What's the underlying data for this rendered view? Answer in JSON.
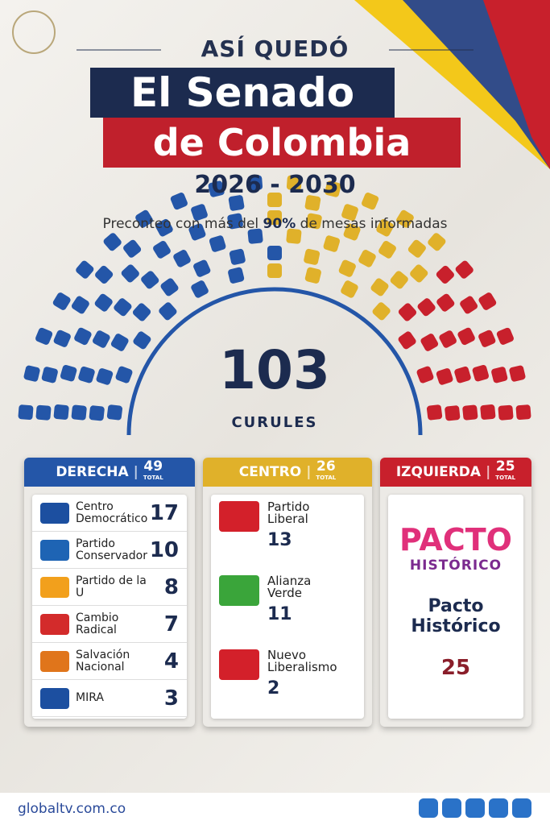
{
  "header": {
    "kicker": "ASÍ QUEDÓ",
    "title_line1": "El Senado",
    "title_line2": "de Colombia",
    "years": "2026 - 2030",
    "subtitle_before": "Preconteo con más del",
    "subtitle_highlight": "90%",
    "subtitle_after": "de mesas informadas"
  },
  "total": {
    "value": 103,
    "label": "CURULES"
  },
  "blocs": [
    {
      "name": "DERECHA",
      "total": 49,
      "total_label": "TOTAL",
      "color": "#2456a8",
      "parties": [
        {
          "name": "Centro Democrático",
          "seats": 17,
          "logo_color": "#1c4fa0"
        },
        {
          "name": "Partido Conservador",
          "seats": 10,
          "logo_color": "#1e64b4"
        },
        {
          "name": "Partido de la U",
          "seats": 8,
          "logo_color": "#f2a01c"
        },
        {
          "name": "Cambio Radical",
          "seats": 7,
          "logo_color": "#d32b2b"
        },
        {
          "name": "Salvación Nacional",
          "seats": 4,
          "logo_color": "#e0751b"
        },
        {
          "name": "MIRA",
          "seats": 3,
          "logo_color": "#1c4fa0"
        }
      ]
    },
    {
      "name": "CENTRO",
      "total": 26,
      "total_label": "TOTAL",
      "color": "#e0b12a",
      "parties": [
        {
          "name": "Partido Liberal",
          "seats": 13,
          "logo_color": "#d3202a"
        },
        {
          "name": "Alianza Verde",
          "seats": 11,
          "logo_color": "#3aa53a"
        },
        {
          "name": "Nuevo Liberalismo",
          "seats": 2,
          "logo_color": "#d3202a"
        }
      ]
    },
    {
      "name": "IZQUIERDA",
      "total": 25,
      "total_label": "TOTAL",
      "color": "#c8202c",
      "parties": [
        {
          "name": "Pacto Histórico",
          "seats": 25,
          "logo_color": "#7b2a8f",
          "logo_top": "PACTO",
          "logo_bottom": "HISTÓRICO"
        }
      ]
    }
  ],
  "footer": {
    "site": "globaltv.com.co"
  }
}
